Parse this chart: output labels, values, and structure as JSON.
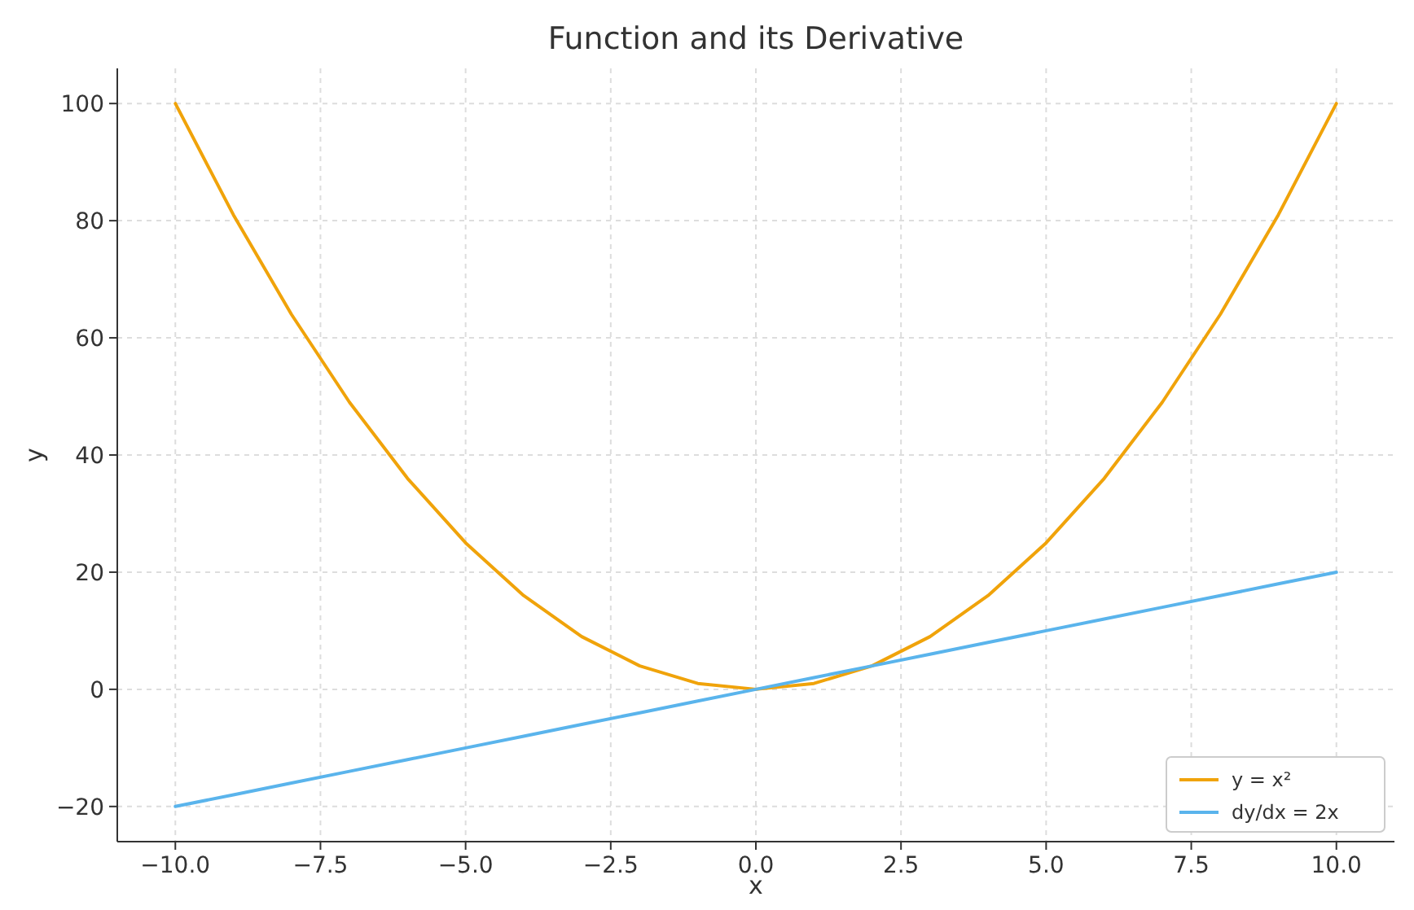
{
  "chart_data": {
    "type": "line",
    "title": "Function and its Derivative",
    "xlabel": "x",
    "ylabel": "y",
    "x": [
      -10,
      -9,
      -8,
      -7,
      -6,
      -5,
      -4,
      -3,
      -2,
      -1,
      0,
      1,
      2,
      3,
      4,
      5,
      6,
      7,
      8,
      9,
      10
    ],
    "series": [
      {
        "name": "y = x²",
        "color": "#f0a30a",
        "values": [
          100,
          81,
          64,
          49,
          36,
          25,
          16,
          9,
          4,
          1,
          0,
          1,
          4,
          9,
          16,
          25,
          36,
          49,
          64,
          81,
          100
        ]
      },
      {
        "name": "dy/dx = 2x",
        "color": "#5ab4ec",
        "values": [
          -20,
          -18,
          -16,
          -14,
          -12,
          -10,
          -8,
          -6,
          -4,
          -2,
          0,
          2,
          4,
          6,
          8,
          10,
          12,
          14,
          16,
          18,
          20
        ]
      }
    ],
    "xlim": [
      -11,
      11
    ],
    "ylim": [
      -26,
      106
    ],
    "xticks": [
      {
        "value": -10,
        "label": "−10.0"
      },
      {
        "value": -7.5,
        "label": "−7.5"
      },
      {
        "value": -5,
        "label": "−5.0"
      },
      {
        "value": -2.5,
        "label": "−2.5"
      },
      {
        "value": 0,
        "label": "0.0"
      },
      {
        "value": 2.5,
        "label": "2.5"
      },
      {
        "value": 5,
        "label": "5.0"
      },
      {
        "value": 7.5,
        "label": "7.5"
      },
      {
        "value": 10,
        "label": "10.0"
      }
    ],
    "yticks": [
      {
        "value": -20,
        "label": "−20"
      },
      0,
      20,
      40,
      60,
      80,
      100
    ],
    "grid": true,
    "legend": "bottom right",
    "line_style": "solid",
    "marker": "none"
  }
}
